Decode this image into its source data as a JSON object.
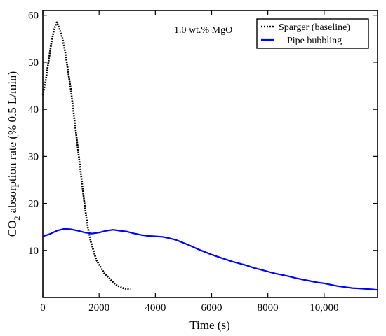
{
  "chart_data": {
    "type": "line",
    "title": "",
    "annotation": "1.0 wt.% MgO",
    "xlabel": "Time (s)",
    "ylabel": "CO2 absorption rate (% 0.5 L/min)",
    "ylabel_main": "CO",
    "ylabel_sub": "2",
    "ylabel_rest": " absorption rate (% 0.5 L/min)",
    "xlim": [
      0,
      11900
    ],
    "ylim": [
      0,
      61
    ],
    "xticks": [
      0,
      2000,
      4000,
      6000,
      8000,
      10000
    ],
    "xtick_labels": [
      "0",
      "2000",
      "4000",
      "6000",
      "8000",
      "10,000"
    ],
    "yticks": [
      10,
      20,
      30,
      40,
      50,
      60
    ],
    "ytick_labels": [
      "10",
      "20",
      "30",
      "40",
      "50",
      "60"
    ],
    "grid": false,
    "legend_position": "top-right",
    "series": [
      {
        "name": "Sparger (baseline)",
        "color": "#000000",
        "style": "dotted",
        "x": [
          0,
          100,
          200,
          300,
          400,
          500,
          600,
          700,
          800,
          900,
          1000,
          1100,
          1200,
          1300,
          1400,
          1500,
          1600,
          1700,
          1800,
          1900,
          2000,
          2100,
          2200,
          2300,
          2400,
          2500,
          2600,
          2700,
          2800,
          2900,
          3000,
          3100
        ],
        "y": [
          43,
          46,
          50,
          54,
          57,
          58.5,
          57,
          55,
          52,
          48,
          44,
          39,
          34,
          29,
          24,
          19,
          15,
          12,
          10,
          8,
          7,
          6,
          5,
          4.5,
          3.8,
          3.2,
          2.7,
          2.4,
          2.1,
          1.9,
          1.8,
          1.7
        ]
      },
      {
        "name": "Pipe bubbling",
        "color": "#0000ff",
        "style": "solid",
        "x": [
          0,
          250,
          500,
          750,
          1000,
          1250,
          1500,
          1750,
          2000,
          2250,
          2500,
          2750,
          3000,
          3250,
          3500,
          3750,
          4000,
          4250,
          4500,
          4750,
          5000,
          5250,
          5500,
          5750,
          6000,
          6250,
          6500,
          6750,
          7000,
          7250,
          7500,
          7750,
          8000,
          8250,
          8500,
          8750,
          9000,
          9250,
          9500,
          9750,
          10000,
          10250,
          10500,
          10750,
          11000,
          11250,
          11500,
          11750,
          11900
        ],
        "y": [
          13,
          13.5,
          14.2,
          14.6,
          14.5,
          14.2,
          13.8,
          13.6,
          13.8,
          14.2,
          14.4,
          14.2,
          14.0,
          13.6,
          13.3,
          13.1,
          13.0,
          12.9,
          12.6,
          12.2,
          11.6,
          11.0,
          10.3,
          9.7,
          9.1,
          8.6,
          8.1,
          7.6,
          7.2,
          6.8,
          6.3,
          5.9,
          5.5,
          5.1,
          4.8,
          4.5,
          4.1,
          3.8,
          3.5,
          3.2,
          3.0,
          2.7,
          2.4,
          2.2,
          2.0,
          1.9,
          1.8,
          1.7,
          1.6
        ]
      }
    ]
  }
}
